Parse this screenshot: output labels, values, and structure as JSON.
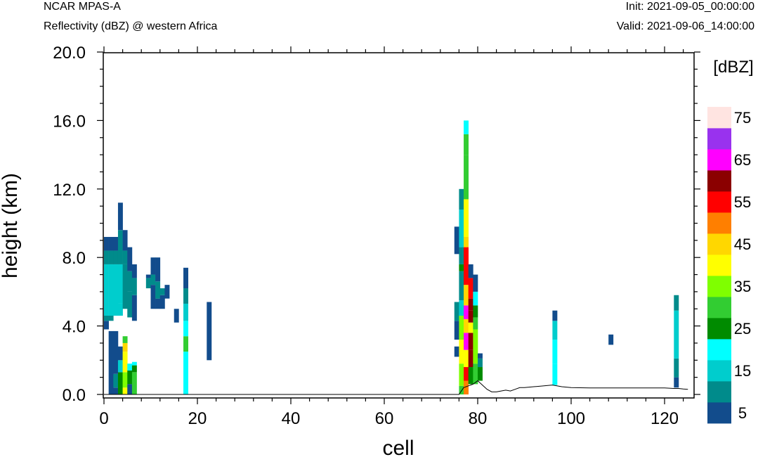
{
  "header": {
    "model": "NCAR MPAS-A",
    "field": "Reflectivity (dBZ) @ western Africa",
    "init": "Init: 2021-09-05_00:00:00",
    "valid": "Valid: 2021-09-06_14:00:00"
  },
  "chart_data": {
    "type": "heatmap",
    "title": "Reflectivity (dBZ) @ western Africa",
    "xlabel": "cell",
    "ylabel": "height (km)",
    "xlim": [
      0,
      126
    ],
    "ylim": [
      0,
      20
    ],
    "x_ticks": [
      0,
      20,
      40,
      60,
      80,
      100,
      120
    ],
    "y_ticks": [
      0,
      4,
      8,
      12,
      16,
      20
    ],
    "y_tick_labels": [
      "0.0",
      "4.0",
      "8.0",
      "12.0",
      "16.0",
      "20.0"
    ],
    "colorbar": {
      "unit": "[dBZ]",
      "levels": [
        5,
        10,
        15,
        20,
        25,
        30,
        35,
        40,
        45,
        50,
        55,
        60,
        65,
        70,
        75
      ],
      "labels": [
        "5",
        "15",
        "25",
        "35",
        "45",
        "55",
        "65",
        "75"
      ],
      "colors": [
        "#124c8c",
        "#008b8b",
        "#00cdcd",
        "#00ffff",
        "#008b00",
        "#32cd32",
        "#7fff00",
        "#ffff00",
        "#ffd700",
        "#ff7f00",
        "#ff0000",
        "#8b0000",
        "#ff00ff",
        "#9932ee",
        "#ffe4e1"
      ]
    },
    "terrain": [
      [
        0,
        0
      ],
      [
        76,
        0
      ],
      [
        77,
        0.4
      ],
      [
        78,
        0.5
      ],
      [
        79,
        0.6
      ],
      [
        80,
        0.8
      ],
      [
        81,
        0.55
      ],
      [
        82,
        0.3
      ],
      [
        83,
        0.15
      ],
      [
        84,
        0.15
      ],
      [
        85,
        0.2
      ],
      [
        86,
        0.25
      ],
      [
        87,
        0.2
      ],
      [
        88,
        0.3
      ],
      [
        89,
        0.4
      ],
      [
        90,
        0.4
      ],
      [
        92,
        0.45
      ],
      [
        94,
        0.5
      ],
      [
        96,
        0.55
      ],
      [
        98,
        0.45
      ],
      [
        100,
        0.4
      ],
      [
        104,
        0.38
      ],
      [
        108,
        0.38
      ],
      [
        112,
        0.38
      ],
      [
        116,
        0.38
      ],
      [
        120,
        0.38
      ],
      [
        122,
        0.35
      ],
      [
        123,
        0.35
      ],
      [
        124,
        0.32
      ],
      [
        125,
        0.3
      ]
    ],
    "columns": [
      {
        "x": 0,
        "cells": [
          [
            3.8,
            4.3,
            5
          ],
          [
            4.3,
            4.6,
            10
          ],
          [
            4.6,
            7.6,
            15
          ],
          [
            7.6,
            8.4,
            10
          ],
          [
            8.4,
            9.2,
            5
          ]
        ]
      },
      {
        "x": 1,
        "cells": [
          [
            0,
            3.7,
            5
          ],
          [
            4.3,
            4.6,
            10
          ],
          [
            4.6,
            7.6,
            15
          ],
          [
            7.6,
            8.4,
            10
          ],
          [
            8.4,
            9.2,
            5
          ]
        ]
      },
      {
        "x": 2,
        "cells": [
          [
            0,
            0.4,
            5
          ],
          [
            0.4,
            1.2,
            10
          ],
          [
            1.2,
            3.7,
            5
          ],
          [
            4.6,
            7.6,
            15
          ],
          [
            7.6,
            8.4,
            10
          ],
          [
            8.4,
            9.2,
            5
          ]
        ]
      },
      {
        "x": 3,
        "cells": [
          [
            0,
            1.3,
            25
          ],
          [
            1.3,
            2.0,
            15
          ],
          [
            2.0,
            2.8,
            5
          ],
          [
            4.6,
            5.3,
            15
          ],
          [
            5.3,
            7.6,
            15
          ],
          [
            7.6,
            9.6,
            10
          ],
          [
            9.6,
            11.2,
            5
          ]
        ]
      },
      {
        "x": 4,
        "cells": [
          [
            0,
            0.4,
            40
          ],
          [
            0.4,
            1.3,
            35
          ],
          [
            1.3,
            2.5,
            40
          ],
          [
            2.5,
            3.0,
            45
          ],
          [
            3.0,
            3.4,
            30
          ],
          [
            5.0,
            7.6,
            10
          ],
          [
            7.6,
            8.4,
            10
          ],
          [
            8.4,
            9.6,
            5
          ]
        ]
      },
      {
        "x": 5,
        "cells": [
          [
            0,
            0.6,
            5
          ],
          [
            0.6,
            1.4,
            25
          ],
          [
            1.4,
            1.8,
            20
          ],
          [
            4.5,
            6.0,
            10
          ],
          [
            6.0,
            7.2,
            10
          ],
          [
            7.2,
            8.6,
            5
          ]
        ]
      },
      {
        "x": 6,
        "cells": [
          [
            0,
            1.3,
            30
          ],
          [
            1.3,
            1.7,
            25
          ],
          [
            1.7,
            1.9,
            20
          ],
          [
            4.3,
            5.8,
            5
          ],
          [
            5.8,
            6.8,
            10
          ],
          [
            6.8,
            7.6,
            5
          ]
        ]
      },
      {
        "x": 9,
        "cells": [
          [
            6.2,
            6.8,
            10
          ],
          [
            6.8,
            7.0,
            5
          ]
        ]
      },
      {
        "x": 10,
        "cells": [
          [
            5.0,
            6.4,
            5
          ],
          [
            6.4,
            7.0,
            10
          ],
          [
            7.0,
            8.0,
            5
          ]
        ]
      },
      {
        "x": 11,
        "cells": [
          [
            5.0,
            5.6,
            5
          ],
          [
            5.6,
            6.6,
            10
          ],
          [
            6.6,
            8.0,
            5
          ]
        ]
      },
      {
        "x": 12,
        "cells": [
          [
            5.0,
            5.8,
            5
          ],
          [
            5.8,
            6.2,
            10
          ]
        ]
      },
      {
        "x": 13,
        "cells": [
          [
            5.6,
            6.4,
            5
          ]
        ]
      },
      {
        "x": 15,
        "cells": [
          [
            4.2,
            5.0,
            5
          ]
        ]
      },
      {
        "x": 17,
        "cells": [
          [
            0,
            2.5,
            20
          ],
          [
            2.5,
            3.4,
            30
          ],
          [
            3.4,
            4.3,
            20
          ],
          [
            4.3,
            5.3,
            15
          ],
          [
            5.3,
            6.2,
            10
          ],
          [
            6.2,
            7.4,
            5
          ]
        ]
      },
      {
        "x": 22,
        "cells": [
          [
            2.0,
            5.4,
            5
          ]
        ]
      },
      {
        "x": 75,
        "cells": [
          [
            2.2,
            2.8,
            5
          ],
          [
            3.2,
            4.3,
            5
          ],
          [
            4.3,
            5.4,
            10
          ],
          [
            8.2,
            9.8,
            5
          ]
        ]
      },
      {
        "x": 76,
        "cells": [
          [
            0,
            0.5,
            30
          ],
          [
            0.5,
            1.8,
            35
          ],
          [
            1.8,
            3.2,
            40
          ],
          [
            3.2,
            4.6,
            35
          ],
          [
            4.6,
            5.5,
            15
          ],
          [
            5.5,
            7.2,
            10
          ],
          [
            7.2,
            7.6,
            25
          ],
          [
            7.6,
            8.6,
            10
          ],
          [
            8.6,
            10.8,
            15
          ],
          [
            10.8,
            12.0,
            10
          ]
        ]
      },
      {
        "x": 77,
        "cells": [
          [
            0,
            0.8,
            50
          ],
          [
            0.8,
            1.6,
            55
          ],
          [
            1.6,
            2.6,
            40
          ],
          [
            2.6,
            3.6,
            65
          ],
          [
            3.6,
            4.4,
            45
          ],
          [
            4.4,
            5.2,
            65
          ],
          [
            5.2,
            6.4,
            45
          ],
          [
            6.4,
            8.6,
            55
          ],
          [
            8.6,
            9.2,
            45
          ],
          [
            9.2,
            11.4,
            40
          ],
          [
            11.4,
            14.0,
            30
          ],
          [
            14.0,
            15.2,
            30
          ],
          [
            15.2,
            16.0,
            20
          ]
        ]
      },
      {
        "x": 78,
        "cells": [
          [
            0.6,
            1.6,
            25
          ],
          [
            1.6,
            2.6,
            60
          ],
          [
            2.6,
            3.6,
            60
          ],
          [
            3.6,
            4.2,
            40
          ],
          [
            4.2,
            4.9,
            60
          ],
          [
            4.9,
            5.6,
            60
          ],
          [
            5.6,
            6.8,
            55
          ],
          [
            6.8,
            7.6,
            5
          ]
        ]
      },
      {
        "x": 79,
        "cells": [
          [
            0.6,
            1.8,
            30
          ],
          [
            1.8,
            3.8,
            35
          ],
          [
            3.8,
            4.5,
            30
          ],
          [
            4.5,
            5.2,
            25
          ],
          [
            5.2,
            6.0,
            20
          ],
          [
            6.0,
            7.0,
            5
          ]
        ]
      },
      {
        "x": 80,
        "cells": [
          [
            0.8,
            1.6,
            25
          ],
          [
            1.6,
            2.1,
            10
          ],
          [
            2.1,
            2.4,
            5
          ]
        ]
      },
      {
        "x": 96,
        "cells": [
          [
            0.55,
            1.8,
            20
          ],
          [
            1.8,
            3.2,
            20
          ],
          [
            3.2,
            4.3,
            15
          ],
          [
            4.3,
            4.9,
            5
          ]
        ]
      },
      {
        "x": 108,
        "cells": [
          [
            2.9,
            3.5,
            5
          ]
        ]
      },
      {
        "x": 122,
        "cells": [
          [
            0.4,
            1.0,
            5
          ],
          [
            1.0,
            2.1,
            10
          ],
          [
            2.1,
            4.9,
            15
          ],
          [
            4.9,
            5.8,
            10
          ]
        ]
      }
    ]
  }
}
